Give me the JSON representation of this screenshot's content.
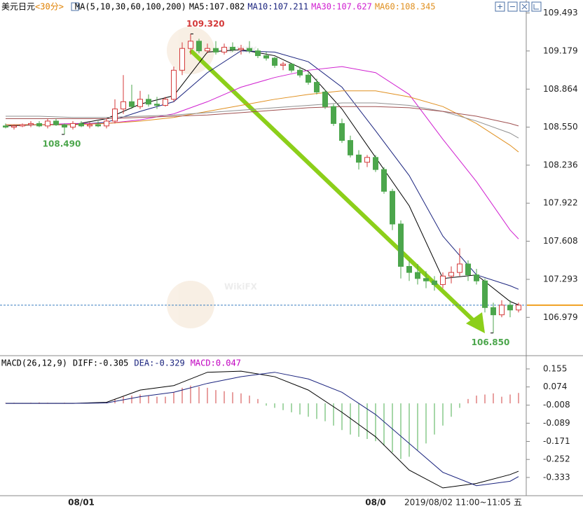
{
  "chart_data": [
    {
      "type": "candlestick",
      "title": "美元日元",
      "period": "<30分>",
      "indicator": "MA(5,10,30,60,100,200)",
      "separator": ":",
      "open": [
        108.56,
        108.55,
        108.56,
        108.57,
        108.58,
        108.56,
        108.6,
        108.57,
        108.55,
        108.58,
        108.56,
        108.57,
        108.56,
        108.6,
        108.7,
        108.76,
        108.72,
        108.78,
        108.74,
        108.73,
        108.78,
        109.02,
        109.2,
        109.26,
        109.18,
        109.2,
        109.17,
        109.21,
        109.19,
        109.2,
        109.18,
        109.14,
        109.12,
        109.06,
        109.07,
        109.02,
        108.98,
        108.92,
        108.84,
        108.72,
        108.58,
        108.44,
        108.32,
        108.26,
        108.3,
        108.2,
        108.02,
        107.75,
        107.4,
        107.35,
        107.3,
        107.28,
        107.25,
        107.32,
        107.35,
        107.42,
        107.33,
        107.28,
        107.06,
        107.0,
        107.08,
        107.04
      ],
      "high": [
        108.58,
        108.57,
        108.58,
        108.6,
        108.6,
        108.62,
        108.62,
        108.58,
        108.6,
        108.6,
        108.59,
        108.6,
        108.62,
        108.78,
        108.98,
        108.9,
        108.85,
        108.82,
        108.8,
        108.8,
        109.05,
        109.25,
        109.32,
        109.28,
        109.24,
        109.26,
        109.24,
        109.25,
        109.23,
        109.26,
        109.2,
        109.17,
        109.13,
        109.09,
        109.08,
        109.05,
        109.0,
        108.95,
        108.86,
        108.74,
        108.62,
        108.48,
        108.36,
        108.32,
        108.32,
        108.22,
        108.04,
        107.78,
        107.45,
        107.42,
        107.36,
        107.32,
        107.35,
        107.4,
        107.55,
        107.45,
        107.38,
        107.3,
        107.1,
        107.12,
        107.12,
        107.1
      ],
      "low": [
        108.54,
        108.53,
        108.55,
        108.55,
        108.55,
        108.54,
        108.56,
        108.49,
        108.53,
        108.55,
        108.54,
        108.55,
        108.54,
        108.58,
        108.66,
        108.7,
        108.7,
        108.72,
        108.7,
        108.72,
        108.76,
        108.98,
        109.15,
        109.16,
        109.16,
        109.15,
        109.15,
        109.17,
        109.15,
        109.16,
        109.12,
        109.1,
        109.04,
        109.02,
        109.0,
        108.96,
        108.9,
        108.82,
        108.7,
        108.56,
        108.42,
        108.3,
        108.2,
        108.22,
        108.18,
        108.0,
        107.7,
        107.3,
        107.28,
        107.25,
        107.22,
        107.2,
        107.22,
        107.26,
        107.32,
        107.28,
        107.25,
        107.02,
        106.85,
        106.98,
        106.98,
        107.02
      ],
      "close": [
        108.55,
        108.56,
        108.57,
        108.58,
        108.56,
        108.6,
        108.57,
        108.55,
        108.58,
        108.56,
        108.57,
        108.56,
        108.6,
        108.7,
        108.76,
        108.72,
        108.78,
        108.74,
        108.73,
        108.78,
        109.02,
        109.2,
        109.26,
        109.18,
        109.2,
        109.17,
        109.21,
        109.19,
        109.2,
        109.18,
        109.14,
        109.12,
        109.06,
        109.07,
        109.02,
        108.98,
        108.92,
        108.84,
        108.72,
        108.58,
        108.44,
        108.32,
        108.26,
        108.3,
        108.2,
        108.02,
        107.75,
        107.4,
        107.35,
        107.3,
        107.28,
        107.25,
        107.32,
        107.35,
        107.42,
        107.33,
        107.28,
        107.06,
        107.0,
        107.08,
        107.04,
        107.08
      ],
      "up_color": "#d43a3a",
      "down_color": "#4ca64c",
      "last_price_color": "#3a7fc0",
      "axis_price_color": "#f0a020",
      "ylim": [
        106.68,
        109.6
      ],
      "yticks": [
        109.493,
        109.179,
        108.864,
        {
          "value": 108.55,
          "label": "108.550"
        },
        108.236,
        107.922,
        107.608,
        107.293,
        106.979
      ],
      "ma_x": [
        0,
        4,
        8,
        12,
        16,
        20,
        24,
        28,
        32,
        36,
        40,
        44,
        48,
        52,
        56,
        60,
        61
      ],
      "ma": [
        {
          "name": "MA5",
          "color": "#000000",
          "values": [
            108.56,
            108.57,
            108.57,
            108.62,
            108.74,
            108.81,
            109.17,
            109.19,
            109.14,
            109.01,
            108.7,
            108.3,
            107.9,
            107.3,
            107.33,
            107.11,
            107.082
          ]
        },
        {
          "name": "MA10",
          "color": "#1a237e",
          "values": [
            108.57,
            108.57,
            108.57,
            108.59,
            108.68,
            108.76,
            109.0,
            109.18,
            109.17,
            109.09,
            108.88,
            108.52,
            108.15,
            107.65,
            107.33,
            107.24,
            107.211
          ]
        },
        {
          "name": "MA30",
          "color": "#d020d0",
          "values": [
            108.57,
            108.57,
            108.58,
            108.58,
            108.61,
            108.66,
            108.76,
            108.88,
            108.96,
            109.02,
            109.05,
            109.0,
            108.82,
            108.45,
            108.1,
            107.7,
            107.627
          ]
        },
        {
          "name": "MA60",
          "color": "#e09020",
          "values": [
            108.57,
            108.57,
            108.57,
            108.58,
            108.6,
            108.63,
            108.68,
            108.73,
            108.78,
            108.82,
            108.85,
            108.85,
            108.8,
            108.72,
            108.58,
            108.4,
            108.345
          ]
        },
        {
          "color": "#909090",
          "values": [
            108.64,
            108.64,
            108.63,
            108.63,
            108.64,
            108.65,
            108.67,
            108.69,
            108.71,
            108.73,
            108.75,
            108.75,
            108.73,
            108.68,
            108.6,
            108.5,
            108.46
          ]
        },
        {
          "color": "#a05050",
          "values": [
            108.62,
            108.62,
            108.62,
            108.62,
            108.63,
            108.64,
            108.65,
            108.67,
            108.69,
            108.71,
            108.72,
            108.72,
            108.71,
            108.68,
            108.64,
            108.58,
            108.56
          ]
        }
      ],
      "annotations": [
        {
          "candle": 22,
          "value": 109.32,
          "label": "109.320",
          "color": "#d43a3a",
          "side": "high"
        },
        {
          "candle": 7,
          "value": 108.49,
          "label": "108.490",
          "color": "#4ca64c",
          "side": "low"
        },
        {
          "candle": 58,
          "value": 106.85,
          "label": "106.850",
          "color": "#4ca64c",
          "side": "low"
        }
      ],
      "x_labels": [
        {
          "candle": 9,
          "label": "08/01"
        },
        {
          "candle": 44,
          "label": "08/0"
        }
      ],
      "status": "2019/08/02 11:00~11:05 五",
      "watermark": "WikiFX"
    },
    {
      "type": "macd",
      "title": "MACD(26,12,9)",
      "separator": ":",
      "ylim": [
        -0.415,
        0.202
      ],
      "yticks": [
        0.155,
        0.074,
        -0.008,
        -0.089,
        -0.171,
        -0.252,
        -0.333
      ],
      "histogram": {
        "name": "MACD",
        "color": "#c000c0",
        "up_color": "#d04040",
        "down_color": "#4caf50",
        "values": [
          0.002,
          0.003,
          0.002,
          0.003,
          0.004,
          0.003,
          0.002,
          0.003,
          0.002,
          0.003,
          0.002,
          0.003,
          0.006,
          0.02,
          0.03,
          0.035,
          0.04,
          0.035,
          0.03,
          0.03,
          0.05,
          0.07,
          0.08,
          0.075,
          0.07,
          0.06,
          0.055,
          0.05,
          0.045,
          0.035,
          0.02,
          -0.01,
          -0.02,
          -0.03,
          -0.04,
          -0.05,
          -0.06,
          -0.07,
          -0.08,
          -0.1,
          -0.12,
          -0.14,
          -0.15,
          -0.16,
          -0.17,
          -0.19,
          -0.22,
          -0.25,
          -0.24,
          -0.21,
          -0.18,
          -0.14,
          -0.1,
          -0.06,
          -0.02,
          0.02,
          0.035,
          0.04,
          0.045,
          0.03,
          0.04,
          0.047
        ]
      },
      "lines_x": [
        0,
        4,
        8,
        12,
        16,
        20,
        24,
        28,
        32,
        36,
        40,
        44,
        48,
        52,
        56,
        60,
        61
      ],
      "lines": [
        {
          "name": "DIFF",
          "color": "#000000",
          "values": [
            0,
            0,
            0,
            0.005,
            0.06,
            0.08,
            0.14,
            0.145,
            0.12,
            0.06,
            -0.04,
            -0.15,
            -0.3,
            -0.38,
            -0.36,
            -0.32,
            -0.305
          ]
        },
        {
          "name": "DEA",
          "color": "#1a237e",
          "values": [
            0,
            0,
            0,
            0.002,
            0.03,
            0.05,
            0.09,
            0.12,
            0.14,
            0.11,
            0.05,
            -0.05,
            -0.18,
            -0.31,
            -0.37,
            -0.35,
            -0.329
          ]
        }
      ]
    }
  ]
}
